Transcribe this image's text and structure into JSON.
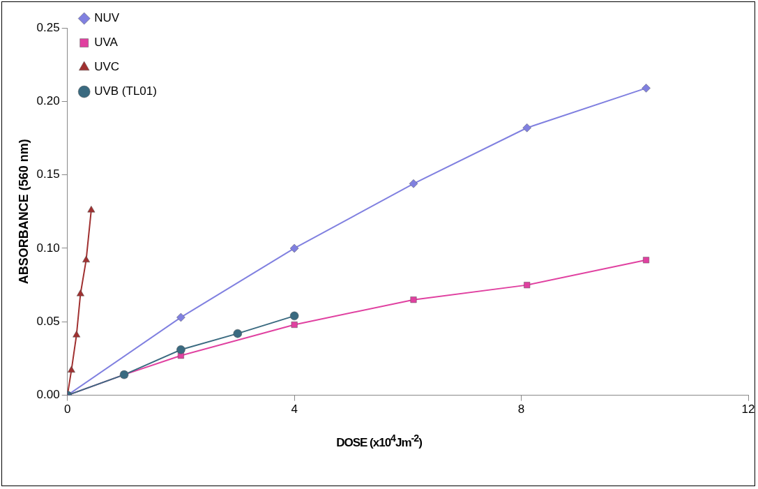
{
  "chart_data": {
    "type": "line",
    "xlabel": "DOSE (x10$^{4}$Jm$^{-2}$)",
    "ylabel": "ABSORBANCE (560 nm)",
    "xlim": [
      0,
      12
    ],
    "xticks": [
      0,
      4,
      8,
      12
    ],
    "ylim": [
      0,
      0.25
    ],
    "yticks": [
      {
        "value": 0,
        "label": "0.00"
      },
      {
        "value": 0.05,
        "label": "0.05"
      },
      {
        "value": 0.1,
        "label": "0.10"
      },
      {
        "value": 0.15,
        "label": "0.15"
      },
      {
        "value": 0.2,
        "label": "0.20"
      },
      {
        "value": 0.25,
        "label": "0.25"
      }
    ],
    "grid": false,
    "legend": "top left",
    "line_style": "solid",
    "series": [
      {
        "name": "NUV",
        "color": "#8080e0",
        "marker": "diamond",
        "x": [
          0,
          2,
          4,
          6.1,
          8.1,
          10.2
        ],
        "values": [
          0,
          0.053,
          0.1,
          0.144,
          0.182,
          0.209
        ]
      },
      {
        "name": "UVA",
        "color": "#e040a0",
        "marker": "square",
        "x": [
          0,
          1,
          2,
          4,
          6.1,
          8.1,
          10.2
        ],
        "values": [
          0,
          0.014,
          0.027,
          0.048,
          0.065,
          0.075,
          0.092
        ]
      },
      {
        "name": "UVC",
        "color": "#a03030",
        "marker": "triangle",
        "x": [
          0,
          0.07,
          0.16,
          0.23,
          0.33,
          0.42
        ],
        "values": [
          0,
          0.017,
          0.041,
          0.069,
          0.092,
          0.126
        ]
      },
      {
        "name": "UVB (TL01)",
        "color": "#3a6a80",
        "marker": "circle",
        "x": [
          0,
          1,
          2,
          3,
          4
        ],
        "values": [
          0,
          0.014,
          0.031,
          0.042,
          0.054
        ]
      }
    ]
  }
}
